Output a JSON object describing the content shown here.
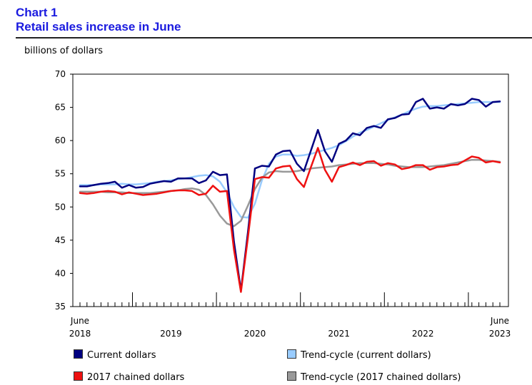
{
  "header": {
    "chart_number": "Chart 1",
    "title": "Retail sales increase in June"
  },
  "unit_label": "billions of dollars",
  "colors": {
    "current": "#000080",
    "trend_current": "#99ccff",
    "chained": "#ee1111",
    "trend_chained": "#999999"
  },
  "chart_data": {
    "type": "line",
    "title": "Retail sales increase in June",
    "ylabel": "billions of dollars",
    "ylim": [
      35,
      70
    ],
    "yticks": [
      35,
      40,
      45,
      50,
      55,
      60,
      65,
      70
    ],
    "x_start": "June 2018",
    "x_end": "June 2023",
    "year_labels": [
      {
        "month_index": 0,
        "month": "June",
        "year": "2018"
      },
      {
        "month_index": 13,
        "month": "",
        "year": "2019"
      },
      {
        "month_index": 25,
        "month": "",
        "year": "2020"
      },
      {
        "month_index": 37,
        "month": "",
        "year": "2021"
      },
      {
        "month_index": 49,
        "month": "",
        "year": "2022"
      },
      {
        "month_index": 60,
        "month": "June",
        "year": "2023"
      }
    ],
    "year_boundaries": [
      7,
      19,
      31,
      43,
      55
    ],
    "series": [
      {
        "name": "Current dollars",
        "key": "current",
        "values": [
          53.1,
          53.1,
          53.3,
          53.5,
          53.6,
          53.8,
          52.9,
          53.3,
          52.9,
          53.0,
          53.5,
          53.7,
          53.9,
          53.8,
          54.3,
          54.3,
          54.3,
          53.6,
          54.0,
          55.3,
          54.8,
          54.9,
          44.8,
          37.4,
          46.2,
          55.8,
          56.2,
          56.1,
          57.9,
          58.4,
          58.5,
          56.5,
          55.4,
          58.5,
          61.6,
          58.4,
          56.8,
          59.5,
          60.0,
          61.1,
          60.8,
          61.9,
          62.2,
          61.9,
          63.2,
          63.4,
          63.9,
          64.0,
          65.8,
          66.3,
          64.8,
          65.0,
          64.8,
          65.5,
          65.3,
          65.5,
          66.3,
          66.1,
          65.1,
          65.8,
          65.9
        ]
      },
      {
        "name": "Trend-cycle (current dollars)",
        "key": "trend_current",
        "values": [
          53.3,
          53.3,
          53.3,
          53.4,
          53.4,
          53.4,
          53.5,
          53.4,
          53.4,
          53.5,
          53.6,
          53.8,
          53.9,
          54.0,
          54.2,
          54.3,
          54.5,
          54.7,
          54.8,
          54.6,
          53.8,
          52.2,
          50.0,
          48.5,
          48.4,
          50.5,
          54.0,
          56.5,
          57.6,
          57.9,
          57.9,
          57.7,
          57.8,
          58.0,
          58.3,
          58.6,
          58.9,
          59.3,
          59.9,
          60.6,
          61.2,
          61.6,
          62.1,
          62.6,
          63.1,
          63.5,
          63.9,
          64.4,
          64.8,
          65.1,
          65.2,
          65.2,
          65.3,
          65.4,
          65.5,
          65.6,
          65.7,
          65.8,
          65.8,
          65.8,
          65.8
        ]
      },
      {
        "name": "2017 chained dollars",
        "key": "chained",
        "values": [
          52.1,
          52.0,
          52.1,
          52.3,
          52.4,
          52.3,
          51.9,
          52.2,
          52.0,
          51.8,
          51.9,
          52.0,
          52.2,
          52.4,
          52.5,
          52.5,
          52.4,
          51.8,
          52.0,
          53.2,
          52.3,
          52.4,
          43.6,
          37.2,
          45.4,
          54.2,
          54.5,
          54.4,
          55.8,
          56.1,
          56.2,
          54.2,
          53.0,
          56.0,
          58.9,
          55.6,
          53.8,
          56.0,
          56.3,
          56.7,
          56.3,
          56.8,
          56.9,
          56.2,
          56.6,
          56.4,
          55.7,
          55.9,
          56.3,
          56.3,
          55.6,
          56.0,
          56.1,
          56.3,
          56.4,
          57.0,
          57.6,
          57.4,
          56.7,
          56.9,
          56.7
        ]
      },
      {
        "name": "Trend-cycle (2017 chained dollars)",
        "key": "trend_chained",
        "values": [
          52.3,
          52.3,
          52.3,
          52.3,
          52.2,
          52.2,
          52.2,
          52.1,
          52.1,
          52.1,
          52.1,
          52.2,
          52.3,
          52.4,
          52.5,
          52.7,
          52.8,
          52.6,
          51.8,
          50.4,
          48.7,
          47.5,
          47.1,
          47.9,
          50.2,
          52.7,
          54.4,
          55.2,
          55.4,
          55.3,
          55.3,
          55.4,
          55.6,
          55.8,
          55.9,
          56.0,
          56.1,
          56.3,
          56.4,
          56.5,
          56.6,
          56.6,
          56.6,
          56.5,
          56.4,
          56.2,
          56.1,
          56.0,
          56.0,
          56.0,
          56.1,
          56.2,
          56.3,
          56.5,
          56.7,
          56.9,
          57.1,
          57.1,
          57.0,
          56.9,
          56.8
        ]
      }
    ],
    "legend": [
      "Current dollars",
      "Trend-cycle (current dollars)",
      "2017 chained dollars",
      "Trend-cycle (2017 chained dollars)"
    ]
  }
}
